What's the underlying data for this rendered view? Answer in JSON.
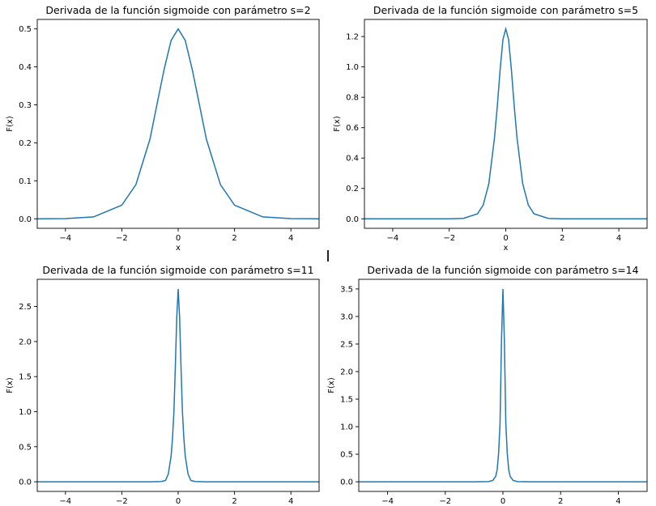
{
  "chart_data": [
    {
      "type": "line",
      "title": "Derivada de la función sigmoide con parámetro s=2",
      "xlabel": "x",
      "ylabel": "F(x)",
      "s": 2,
      "xlim": [
        -5,
        5
      ],
      "ylim": [
        -0.025,
        0.525
      ],
      "xticks": [
        -4,
        -2,
        0,
        2,
        4
      ],
      "xtick_labels": [
        "−4",
        "−2",
        "0",
        "2",
        "4"
      ],
      "yticks": [
        0.0,
        0.1,
        0.2,
        0.3,
        0.4,
        0.5
      ],
      "ytick_labels": [
        "0.0",
        "0.1",
        "0.2",
        "0.3",
        "0.4",
        "0.5"
      ],
      "grid": false,
      "series": [
        {
          "color": "#1f77b4",
          "x": [
            -5,
            -4,
            -3,
            -2,
            -1.5,
            -1,
            -0.75,
            -0.5,
            -0.25,
            0,
            0.25,
            0.5,
            0.75,
            1,
            1.5,
            2,
            3,
            4,
            5
          ],
          "y": [
            0.0001,
            0.0007,
            0.005,
            0.036,
            0.09,
            0.21,
            0.302,
            0.393,
            0.47,
            0.5,
            0.47,
            0.393,
            0.302,
            0.21,
            0.09,
            0.036,
            0.005,
            0.0007,
            0.0001
          ]
        }
      ]
    },
    {
      "type": "line",
      "title": "Derivada de la función sigmoide con parámetro s=5",
      "xlabel": "x",
      "ylabel": "F(x)",
      "s": 5,
      "xlim": [
        -5,
        5
      ],
      "ylim": [
        -0.0625,
        1.3125
      ],
      "xticks": [
        -4,
        -2,
        0,
        2,
        4
      ],
      "xtick_labels": [
        "−4",
        "−2",
        "0",
        "2",
        "4"
      ],
      "yticks": [
        0.0,
        0.2,
        0.4,
        0.6,
        0.8,
        1.0,
        1.2
      ],
      "ytick_labels": [
        "0.0",
        "0.2",
        "0.4",
        "0.6",
        "0.8",
        "1.0",
        "1.2"
      ],
      "grid": false,
      "series": [
        {
          "color": "#1f77b4",
          "x": [
            -5,
            -2,
            -1.5,
            -1,
            -0.8,
            -0.6,
            -0.4,
            -0.3,
            -0.2,
            -0.1,
            0,
            0.1,
            0.2,
            0.3,
            0.4,
            0.6,
            0.8,
            1,
            1.5,
            2,
            5
          ],
          "y": [
            0,
            0.0002,
            0.0028,
            0.033,
            0.09,
            0.23,
            0.53,
            0.74,
            0.98,
            1.18,
            1.25,
            1.18,
            0.98,
            0.74,
            0.53,
            0.23,
            0.09,
            0.033,
            0.0028,
            0.0002,
            0
          ]
        }
      ]
    },
    {
      "type": "line",
      "title": "Derivada de la función sigmoide con parámetro s=11",
      "xlabel": "",
      "ylabel": "F(x)",
      "s": 11,
      "xlim": [
        -5,
        5
      ],
      "ylim": [
        -0.1375,
        2.8875
      ],
      "xticks": [
        -4,
        -2,
        0,
        2,
        4
      ],
      "xtick_labels": [
        "−4",
        "−2",
        "0",
        "2",
        "4"
      ],
      "yticks": [
        0.0,
        0.5,
        1.0,
        1.5,
        2.0,
        2.5
      ],
      "ytick_labels": [
        "0.0",
        "0.5",
        "1.0",
        "1.5",
        "2.0",
        "2.5"
      ],
      "grid": false,
      "series": [
        {
          "color": "#1f77b4",
          "x": [
            -5,
            -1,
            -0.6,
            -0.45,
            -0.35,
            -0.25,
            -0.2,
            -0.15,
            -0.1,
            -0.05,
            0,
            0.05,
            0.1,
            0.15,
            0.2,
            0.25,
            0.35,
            0.45,
            0.6,
            1,
            5
          ],
          "y": [
            0,
            0.0002,
            0.0037,
            0.019,
            0.11,
            0.37,
            0.63,
            1.01,
            1.65,
            2.35,
            2.75,
            2.35,
            1.65,
            1.01,
            0.63,
            0.37,
            0.11,
            0.019,
            0.0037,
            0.0002,
            0
          ]
        }
      ]
    },
    {
      "type": "line",
      "title": "Derivada de la función sigmoide con parámetro s=14",
      "xlabel": "",
      "ylabel": "F(x)",
      "s": 14,
      "xlim": [
        -5,
        5
      ],
      "ylim": [
        -0.175,
        3.675
      ],
      "xticks": [
        -4,
        -2,
        0,
        2,
        4
      ],
      "xtick_labels": [
        "−4",
        "−2",
        "0",
        "2",
        "4"
      ],
      "yticks": [
        0.0,
        0.5,
        1.0,
        1.5,
        2.0,
        2.5,
        3.0,
        3.5
      ],
      "ytick_labels": [
        "0.0",
        "0.5",
        "1.0",
        "1.5",
        "2.0",
        "2.5",
        "3.0",
        "3.5"
      ],
      "grid": false,
      "series": [
        {
          "color": "#1f77b4",
          "x": [
            -5,
            -1,
            -0.5,
            -0.35,
            -0.25,
            -0.2,
            -0.15,
            -0.1,
            -0.05,
            0,
            0.05,
            0.1,
            0.15,
            0.2,
            0.25,
            0.35,
            0.5,
            1,
            5
          ],
          "y": [
            0,
            3e-05,
            0.0032,
            0.026,
            0.1,
            0.22,
            0.52,
            1.06,
            2.56,
            3.5,
            2.56,
            1.06,
            0.52,
            0.22,
            0.1,
            0.026,
            0.0032,
            3e-05,
            0
          ]
        }
      ]
    }
  ]
}
